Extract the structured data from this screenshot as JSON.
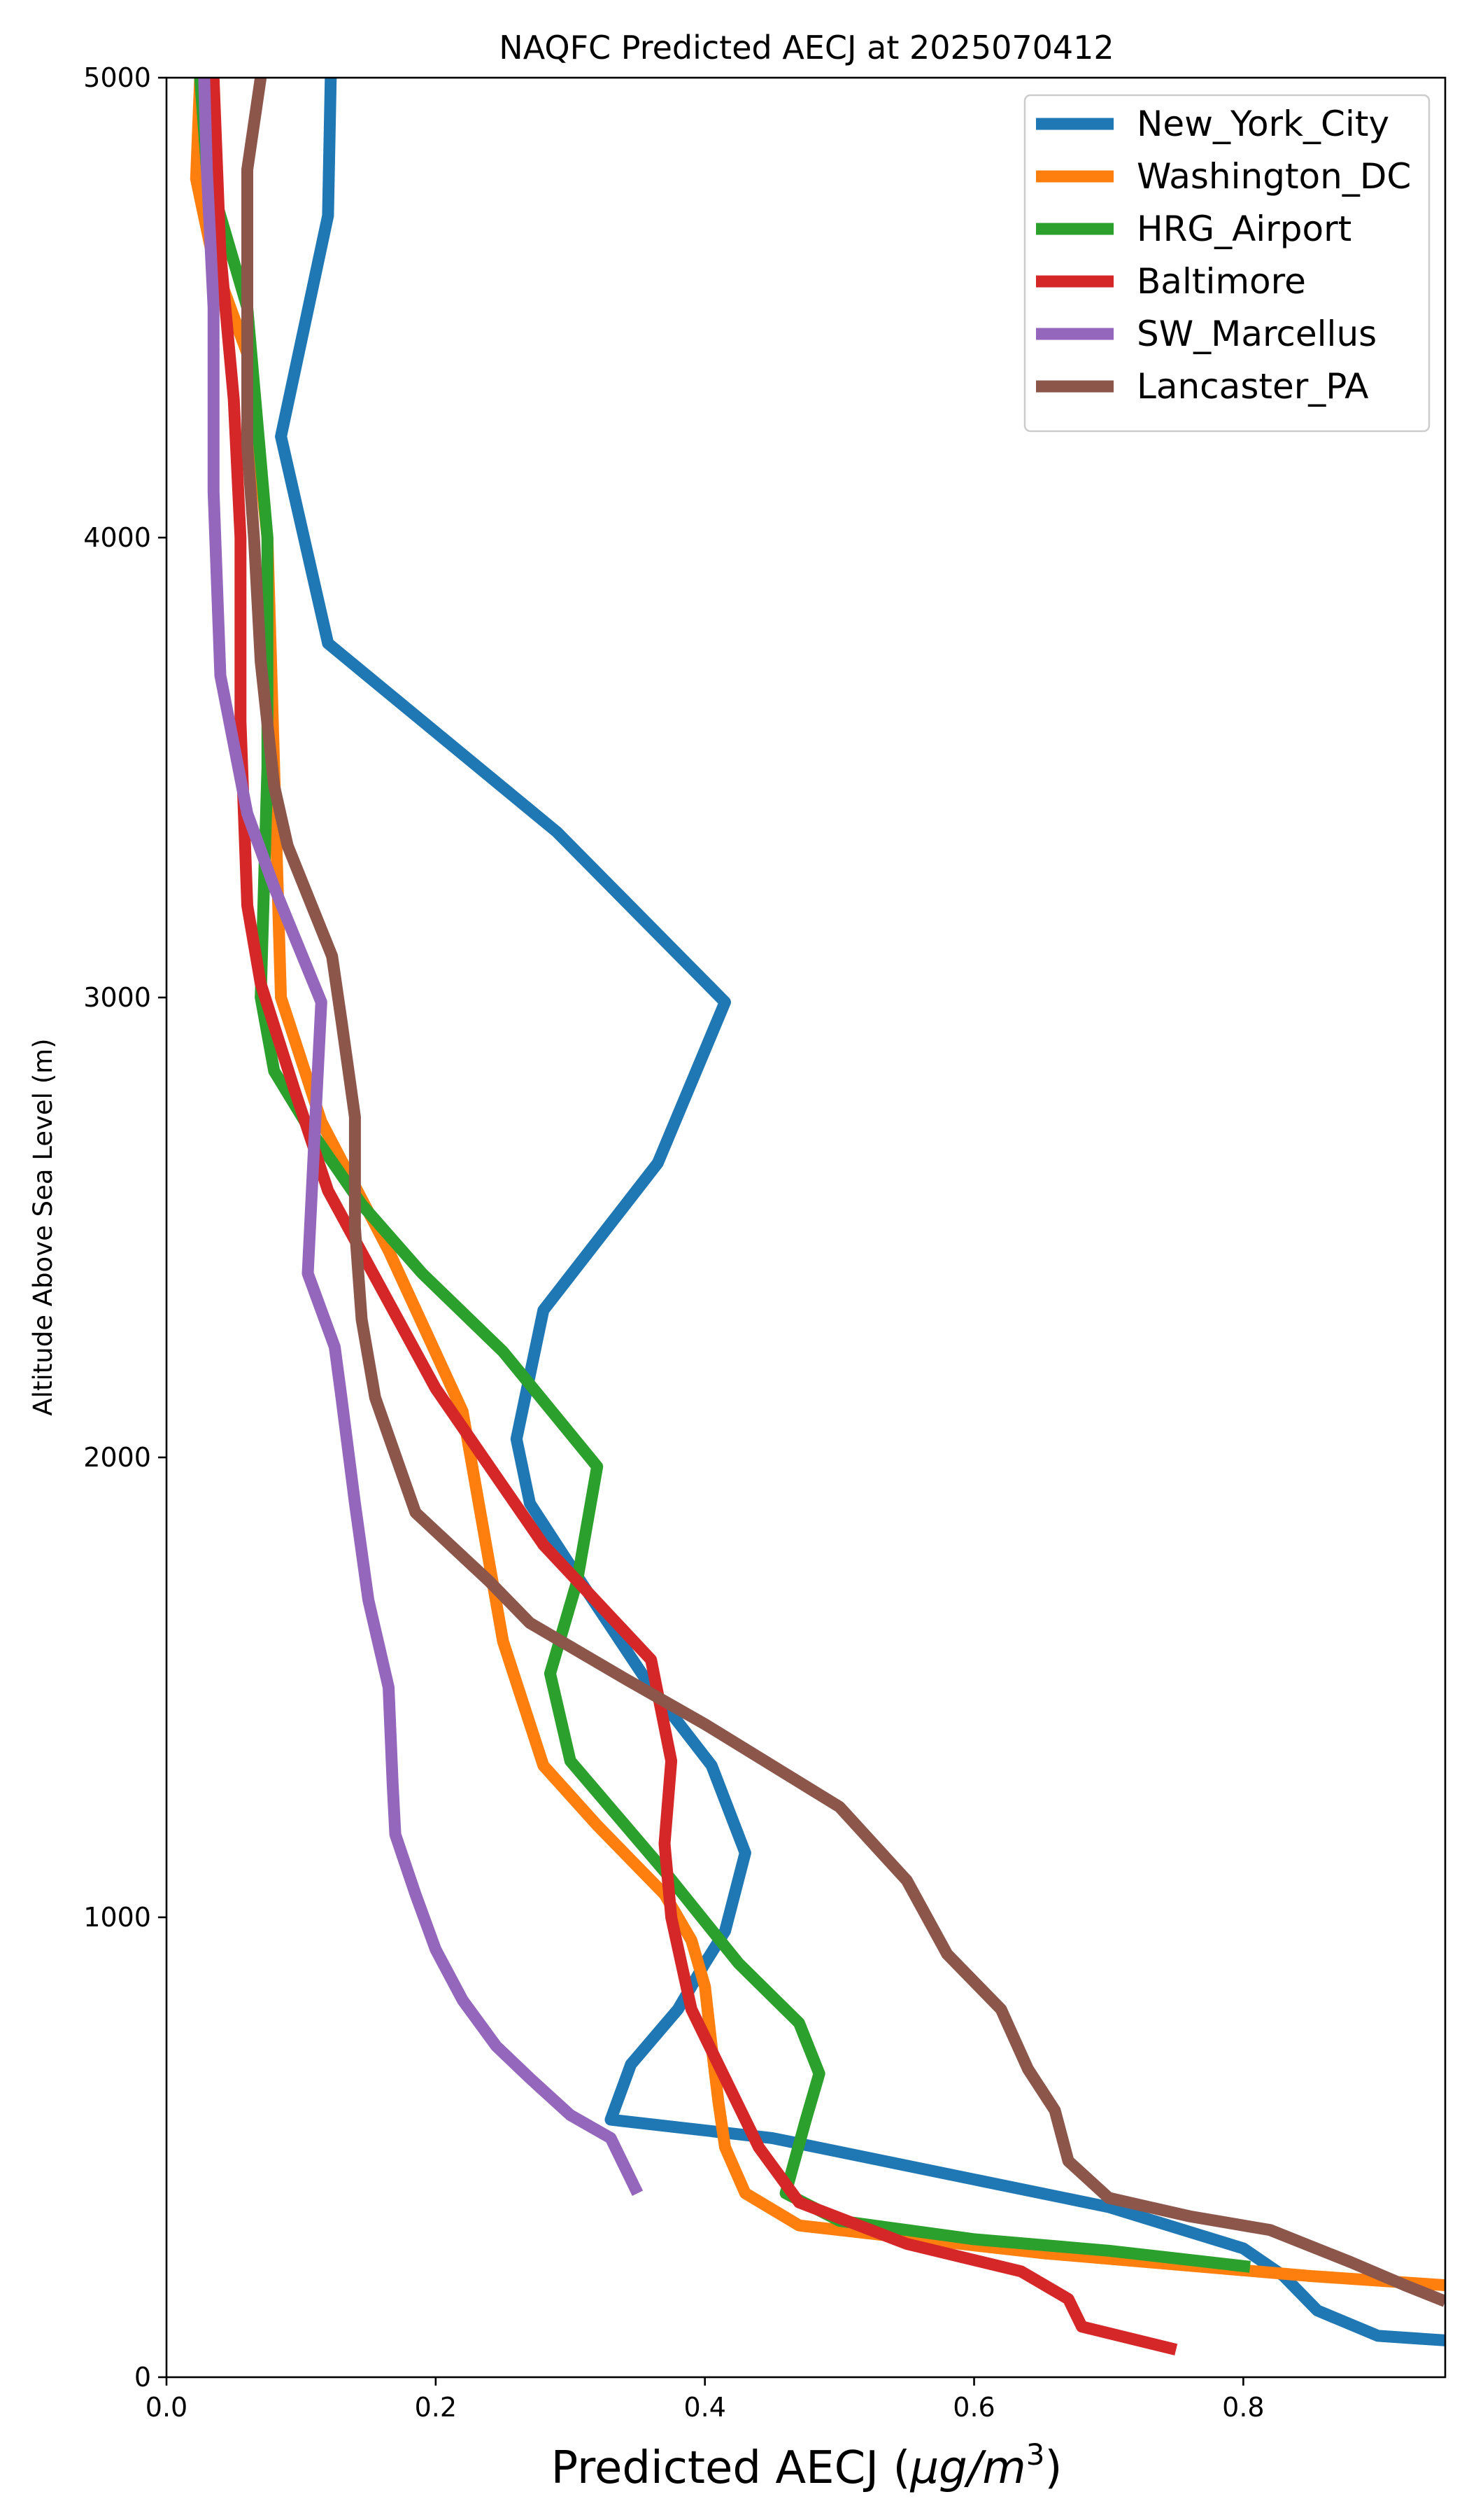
{
  "chart_data": {
    "type": "line",
    "title": "NAQFC Predicted AECJ at 2025070412",
    "xlabel": "Predicted AECJ (μg/m³)",
    "xlabel_prefix": "Predicted AECJ (",
    "xlabel_unit": "μg/m",
    "xlabel_sup": "3",
    "xlabel_suffix": ")",
    "ylabel": "Altitude Above Sea Level (m)",
    "xlim": [
      0,
      0.95
    ],
    "ylim": [
      0,
      5000
    ],
    "xticks": [
      0.0,
      0.2,
      0.4,
      0.6,
      0.8
    ],
    "xtick_labels": [
      "0.0",
      "0.2",
      "0.4",
      "0.6",
      "0.8"
    ],
    "yticks": [
      0,
      1000,
      2000,
      3000,
      4000,
      5000
    ],
    "ytick_labels": [
      "0",
      "1000",
      "2000",
      "3000",
      "4000",
      "5000"
    ],
    "grid": false,
    "legend_position": "top-right",
    "series": [
      {
        "name": "New_York_City",
        "color": "#1f77b4",
        "points": [
          [
            0.95,
            80
          ],
          [
            0.9,
            90
          ],
          [
            0.855,
            145
          ],
          [
            0.83,
            220
          ],
          [
            0.8,
            280
          ],
          [
            0.7,
            370
          ],
          [
            0.55,
            460
          ],
          [
            0.45,
            520
          ],
          [
            0.33,
            560
          ],
          [
            0.345,
            680
          ],
          [
            0.38,
            800
          ],
          [
            0.4,
            900
          ],
          [
            0.415,
            970
          ],
          [
            0.43,
            1140
          ],
          [
            0.405,
            1330
          ],
          [
            0.36,
            1500
          ],
          [
            0.31,
            1720
          ],
          [
            0.27,
            1900
          ],
          [
            0.26,
            2040
          ],
          [
            0.28,
            2320
          ],
          [
            0.365,
            2640
          ],
          [
            0.415,
            2990
          ],
          [
            0.29,
            3360
          ],
          [
            0.12,
            3770
          ],
          [
            0.085,
            4220
          ],
          [
            0.12,
            4700
          ],
          [
            0.122,
            5000
          ]
        ]
      },
      {
        "name": "Washington_DC",
        "color": "#ff7f0e",
        "points": [
          [
            0.95,
            200
          ],
          [
            0.85,
            220
          ],
          [
            0.65,
            270
          ],
          [
            0.56,
            300
          ],
          [
            0.47,
            330
          ],
          [
            0.43,
            400
          ],
          [
            0.415,
            500
          ],
          [
            0.41,
            600
          ],
          [
            0.405,
            720
          ],
          [
            0.4,
            850
          ],
          [
            0.39,
            950
          ],
          [
            0.37,
            1050
          ],
          [
            0.32,
            1200
          ],
          [
            0.28,
            1330
          ],
          [
            0.25,
            1600
          ],
          [
            0.22,
            2100
          ],
          [
            0.165,
            2450
          ],
          [
            0.115,
            2730
          ],
          [
            0.085,
            3000
          ],
          [
            0.08,
            3500
          ],
          [
            0.075,
            4000
          ],
          [
            0.06,
            4400
          ],
          [
            0.035,
            4600
          ],
          [
            0.022,
            4780
          ],
          [
            0.025,
            5000
          ]
        ]
      },
      {
        "name": "HRG_Airport",
        "color": "#2ca02c",
        "points": [
          [
            0.805,
            240
          ],
          [
            0.7,
            275
          ],
          [
            0.6,
            300
          ],
          [
            0.5,
            340
          ],
          [
            0.46,
            400
          ],
          [
            0.475,
            560
          ],
          [
            0.485,
            660
          ],
          [
            0.47,
            770
          ],
          [
            0.425,
            900
          ],
          [
            0.37,
            1100
          ],
          [
            0.3,
            1340
          ],
          [
            0.285,
            1530
          ],
          [
            0.305,
            1730
          ],
          [
            0.32,
            1980
          ],
          [
            0.25,
            2230
          ],
          [
            0.19,
            2400
          ],
          [
            0.145,
            2550
          ],
          [
            0.105,
            2720
          ],
          [
            0.08,
            2840
          ],
          [
            0.07,
            3000
          ],
          [
            0.075,
            3500
          ],
          [
            0.075,
            4000
          ],
          [
            0.06,
            4500
          ],
          [
            0.03,
            4800
          ],
          [
            0.025,
            5000
          ]
        ]
      },
      {
        "name": "Baltimore",
        "color": "#d62728",
        "points": [
          [
            0.75,
            60
          ],
          [
            0.68,
            110
          ],
          [
            0.67,
            170
          ],
          [
            0.635,
            230
          ],
          [
            0.55,
            290
          ],
          [
            0.47,
            380
          ],
          [
            0.44,
            500
          ],
          [
            0.39,
            800
          ],
          [
            0.375,
            1000
          ],
          [
            0.37,
            1160
          ],
          [
            0.375,
            1340
          ],
          [
            0.36,
            1560
          ],
          [
            0.28,
            1810
          ],
          [
            0.2,
            2150
          ],
          [
            0.12,
            2580
          ],
          [
            0.095,
            2800
          ],
          [
            0.07,
            3030
          ],
          [
            0.06,
            3200
          ],
          [
            0.055,
            3600
          ],
          [
            0.055,
            4000
          ],
          [
            0.05,
            4300
          ],
          [
            0.04,
            4620
          ],
          [
            0.035,
            5000
          ]
        ]
      },
      {
        "name": "SW_Marcellus",
        "color": "#9467bd",
        "points": [
          [
            0.35,
            400
          ],
          [
            0.34,
            460
          ],
          [
            0.33,
            520
          ],
          [
            0.3,
            570
          ],
          [
            0.27,
            650
          ],
          [
            0.245,
            720
          ],
          [
            0.22,
            820
          ],
          [
            0.2,
            930
          ],
          [
            0.185,
            1050
          ],
          [
            0.17,
            1180
          ],
          [
            0.168,
            1290
          ],
          [
            0.165,
            1500
          ],
          [
            0.15,
            1690
          ],
          [
            0.14,
            1900
          ],
          [
            0.13,
            2130
          ],
          [
            0.125,
            2240
          ],
          [
            0.105,
            2400
          ],
          [
            0.11,
            2700
          ],
          [
            0.115,
            2990
          ],
          [
            0.08,
            3240
          ],
          [
            0.06,
            3400
          ],
          [
            0.04,
            3700
          ],
          [
            0.035,
            4100
          ],
          [
            0.035,
            4500
          ],
          [
            0.03,
            4800
          ],
          [
            0.028,
            5000
          ]
        ]
      },
      {
        "name": "Lancaster_PA",
        "color": "#8c564b",
        "points": [
          [
            0.95,
            165
          ],
          [
            0.92,
            200
          ],
          [
            0.88,
            250
          ],
          [
            0.82,
            320
          ],
          [
            0.76,
            350
          ],
          [
            0.7,
            390
          ],
          [
            0.67,
            470
          ],
          [
            0.66,
            580
          ],
          [
            0.64,
            670
          ],
          [
            0.62,
            800
          ],
          [
            0.58,
            920
          ],
          [
            0.55,
            1080
          ],
          [
            0.5,
            1240
          ],
          [
            0.4,
            1420
          ],
          [
            0.34,
            1520
          ],
          [
            0.27,
            1640
          ],
          [
            0.24,
            1730
          ],
          [
            0.185,
            1880
          ],
          [
            0.155,
            2130
          ],
          [
            0.145,
            2300
          ],
          [
            0.14,
            2500
          ],
          [
            0.14,
            2740
          ],
          [
            0.13,
            2950
          ],
          [
            0.123,
            3090
          ],
          [
            0.09,
            3330
          ],
          [
            0.08,
            3460
          ],
          [
            0.07,
            3730
          ],
          [
            0.065,
            4000
          ],
          [
            0.06,
            4200
          ],
          [
            0.06,
            4500
          ],
          [
            0.06,
            4800
          ],
          [
            0.07,
            5000
          ]
        ]
      }
    ]
  }
}
